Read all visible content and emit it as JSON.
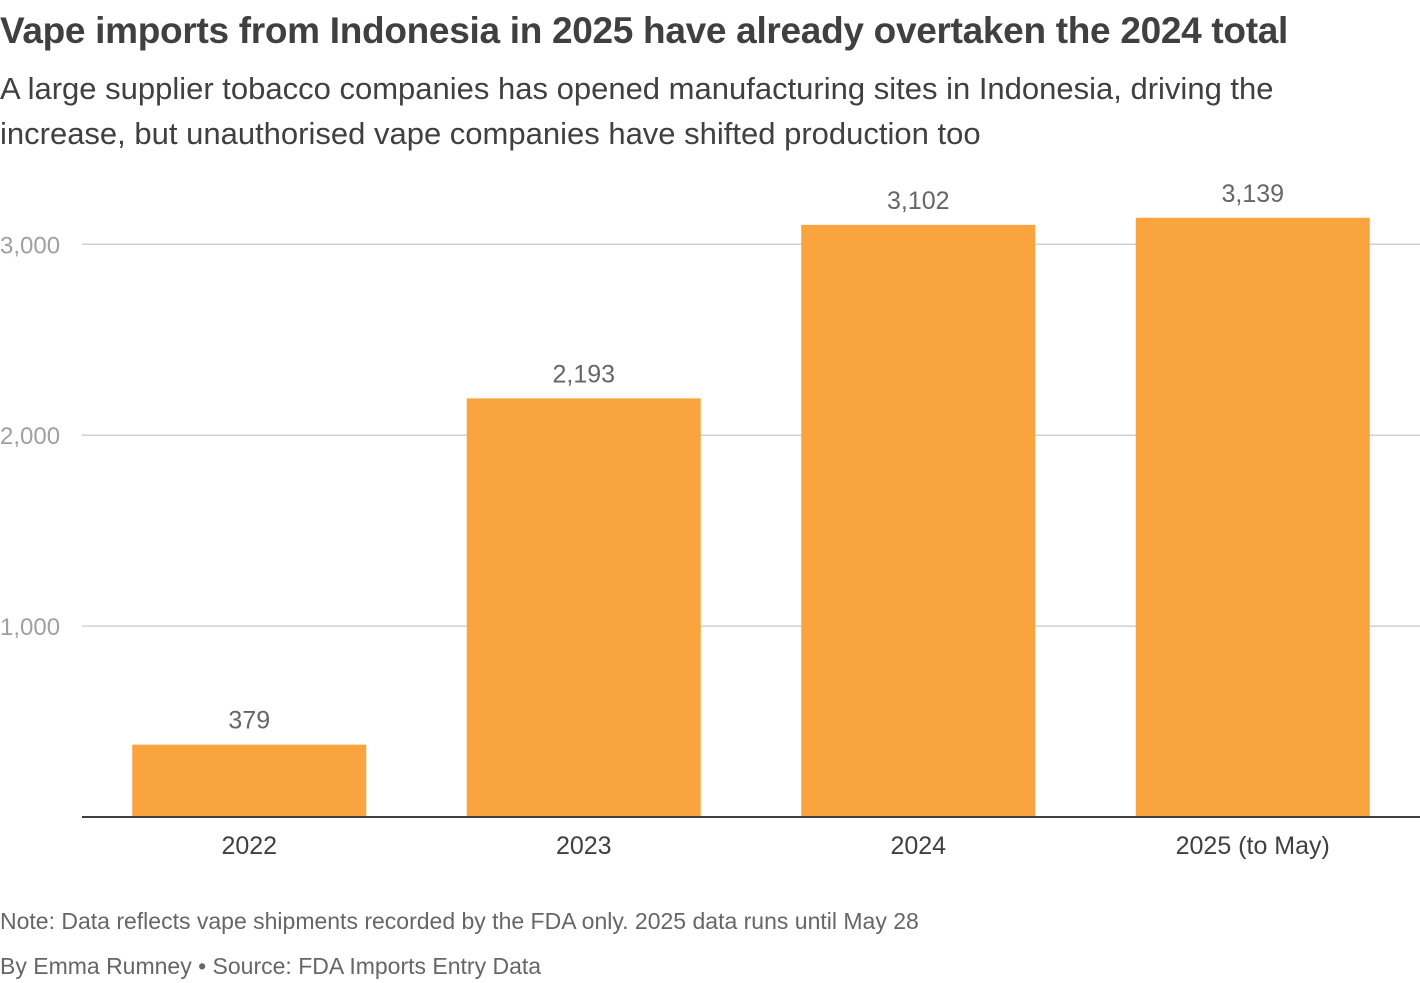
{
  "colors": {
    "bar": "#f9a43f",
    "grid": "#d0d0d0",
    "baseline": "#404040",
    "text": "#404040",
    "muted": "#666666",
    "tick": "#a0a0a0"
  },
  "chart_data": {
    "type": "bar",
    "title": "Vape imports from Indonesia in 2025 have already overtaken the 2024 total",
    "subtitle": "A large supplier tobacco companies has opened manufacturing sites in Indonesia, driving the increase, but unauthorised vape companies have shifted production too",
    "categories": [
      "2022",
      "2023",
      "2024",
      "2025 (to May)"
    ],
    "values": [
      379,
      2193,
      3102,
      3139
    ],
    "data_labels": [
      "379",
      "2,193",
      "3,102",
      "3,139"
    ],
    "ylim": [
      0,
      3300
    ],
    "yticks": [
      1000,
      2000,
      3000
    ],
    "ytick_labels": [
      "1,000",
      "2,000",
      "3,000"
    ],
    "grid": true,
    "legend": "none",
    "xlabel": "",
    "ylabel": ""
  },
  "footer": {
    "note": "Note: Data reflects vape shipments recorded by the FDA only. 2025 data runs until May 28",
    "credit": "By Emma Rumney • Source: FDA Imports Entry Data"
  }
}
